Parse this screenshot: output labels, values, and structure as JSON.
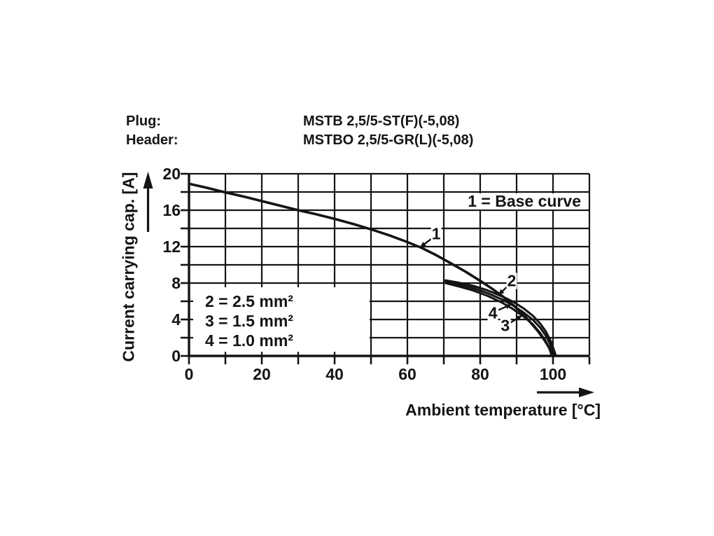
{
  "header": {
    "rows": [
      {
        "label": "Plug:",
        "value": "MSTB 2,5/5-ST(F)(-5,08)"
      },
      {
        "label": "Header:",
        "value": "MSTBO 2,5/5-GR(L)(-5,08)"
      }
    ]
  },
  "chart_data": {
    "type": "line",
    "title": "",
    "xlabel": "Ambient temperature [°C]",
    "ylabel": "Current carrying cap. [A]",
    "xlim": [
      0,
      110
    ],
    "ylim": [
      0,
      20
    ],
    "x_grid_step": 10,
    "y_grid_step": 2,
    "x_tick_labels": [
      0,
      20,
      40,
      60,
      80,
      100
    ],
    "y_tick_labels": [
      0,
      4,
      8,
      12,
      16,
      20
    ],
    "grid": true,
    "note": "1 = Base curve",
    "legend": [
      "2 = 2.5 mm²",
      "3 = 1.5 mm²",
      "4 = 1.0 mm²"
    ],
    "legend_position": "lower-left-inside",
    "note_position": "upper-right-inside",
    "line_color": "#141414",
    "series": [
      {
        "label": "1",
        "name": "Base curve",
        "points": [
          [
            0,
            18.9
          ],
          [
            5,
            18.45
          ],
          [
            10,
            17.95
          ],
          [
            15,
            17.5
          ],
          [
            20,
            17.0
          ],
          [
            25,
            16.5
          ],
          [
            30,
            16.0
          ],
          [
            35,
            15.55
          ],
          [
            40,
            15.05
          ],
          [
            45,
            14.5
          ],
          [
            50,
            13.9
          ],
          [
            55,
            13.25
          ],
          [
            60,
            12.5
          ],
          [
            64,
            11.85
          ],
          [
            68,
            11.05
          ],
          [
            72,
            10.15
          ],
          [
            76,
            9.25
          ],
          [
            80,
            8.25
          ],
          [
            83,
            7.45
          ],
          [
            86,
            6.6
          ],
          [
            89,
            5.6
          ],
          [
            91.5,
            4.7
          ],
          [
            94,
            3.6
          ],
          [
            96,
            2.65
          ],
          [
            97.8,
            1.65
          ],
          [
            99.2,
            0.75
          ],
          [
            100.2,
            0
          ]
        ]
      },
      {
        "label": "2",
        "name": "2.5 mm²",
        "points": [
          [
            70.5,
            8.3
          ],
          [
            74,
            8.05
          ],
          [
            78,
            7.7
          ],
          [
            82,
            7.2
          ],
          [
            86,
            6.55
          ],
          [
            89,
            5.95
          ],
          [
            92,
            5.2
          ],
          [
            94.5,
            4.4
          ],
          [
            96.5,
            3.55
          ],
          [
            98,
            2.7
          ],
          [
            99.3,
            1.7
          ],
          [
            100.3,
            0.6
          ],
          [
            100.8,
            0
          ]
        ]
      },
      {
        "label": "3",
        "name": "1.5 mm²",
        "points": [
          [
            70.5,
            8.0
          ],
          [
            74,
            7.65
          ],
          [
            78,
            7.2
          ],
          [
            82,
            6.6
          ],
          [
            86,
            5.85
          ],
          [
            89,
            5.15
          ],
          [
            92,
            4.3
          ],
          [
            94.5,
            3.45
          ],
          [
            96.3,
            2.6
          ],
          [
            97.8,
            1.75
          ],
          [
            99,
            0.8
          ],
          [
            99.7,
            0
          ]
        ]
      },
      {
        "label": "4",
        "name": "1.0 mm²",
        "points": [
          [
            70.5,
            8.15
          ],
          [
            74,
            7.85
          ],
          [
            78,
            7.45
          ],
          [
            82,
            6.9
          ],
          [
            86,
            6.2
          ],
          [
            89,
            5.55
          ],
          [
            92,
            4.75
          ],
          [
            94.5,
            3.95
          ],
          [
            96.5,
            3.1
          ],
          [
            98,
            2.25
          ],
          [
            99.2,
            1.3
          ],
          [
            100.1,
            0.3
          ],
          [
            100.4,
            0
          ]
        ]
      }
    ]
  }
}
